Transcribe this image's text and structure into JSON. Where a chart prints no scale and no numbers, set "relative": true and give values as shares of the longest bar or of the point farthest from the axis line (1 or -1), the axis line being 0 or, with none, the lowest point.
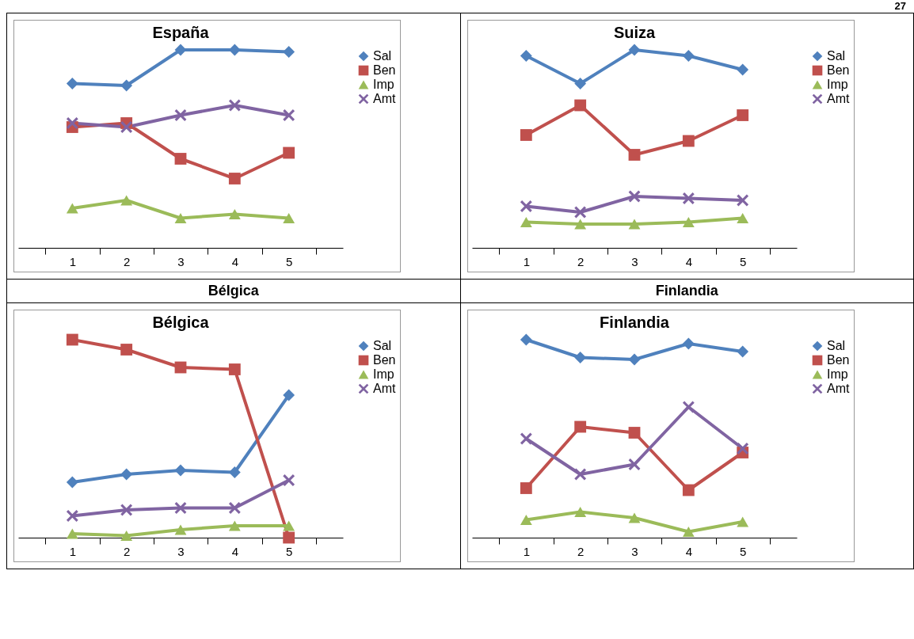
{
  "chart_data": [
    {
      "type": "line",
      "title": "España",
      "relative": true,
      "legend": "right",
      "annotations": [
        "27"
      ],
      "categories": [
        "1",
        "2",
        "3",
        "4",
        "5"
      ],
      "series": [
        {
          "name": "Sal",
          "color": "#4f81bd",
          "marker": "diamond",
          "values": [
            0.83,
            0.82,
            1.0,
            1.0,
            0.99
          ]
        },
        {
          "name": "Ben",
          "color": "#c0504d",
          "marker": "square",
          "values": [
            0.61,
            0.63,
            0.45,
            0.35,
            0.48
          ]
        },
        {
          "name": "Imp",
          "color": "#9bbb59",
          "marker": "triangle",
          "values": [
            0.2,
            0.24,
            0.15,
            0.17,
            0.15
          ]
        },
        {
          "name": "Amt",
          "color": "#8064a2",
          "marker": "cross",
          "values": [
            0.63,
            0.61,
            0.67,
            0.72,
            0.67
          ]
        }
      ]
    },
    {
      "type": "line",
      "title": "Suiza",
      "relative": true,
      "legend": "right",
      "categories": [
        "1",
        "2",
        "3",
        "4",
        "5"
      ],
      "series": [
        {
          "name": "Sal",
          "color": "#4f81bd",
          "marker": "diamond",
          "values": [
            0.97,
            0.83,
            1.0,
            0.97,
            0.9
          ]
        },
        {
          "name": "Ben",
          "color": "#c0504d",
          "marker": "square",
          "values": [
            0.57,
            0.72,
            0.47,
            0.54,
            0.67
          ]
        },
        {
          "name": "Imp",
          "color": "#9bbb59",
          "marker": "triangle",
          "values": [
            0.13,
            0.12,
            0.12,
            0.13,
            0.15
          ]
        },
        {
          "name": "Amt",
          "color": "#8064a2",
          "marker": "cross",
          "values": [
            0.21,
            0.18,
            0.26,
            0.25,
            0.24
          ]
        }
      ]
    },
    {
      "type": "line",
      "title": "Bélgica",
      "relative": true,
      "legend": "right",
      "annotations": [
        "Bélgica"
      ],
      "categories": [
        "1",
        "2",
        "3",
        "4",
        "5"
      ],
      "series": [
        {
          "name": "Sal",
          "color": "#4f81bd",
          "marker": "diamond",
          "values": [
            0.28,
            0.32,
            0.34,
            0.33,
            0.72
          ]
        },
        {
          "name": "Ben",
          "color": "#c0504d",
          "marker": "square",
          "values": [
            1.0,
            0.95,
            0.86,
            0.85,
            0.0
          ]
        },
        {
          "name": "Imp",
          "color": "#9bbb59",
          "marker": "triangle",
          "values": [
            0.02,
            0.01,
            0.04,
            0.06,
            0.06
          ]
        },
        {
          "name": "Amt",
          "color": "#8064a2",
          "marker": "cross",
          "values": [
            0.11,
            0.14,
            0.15,
            0.15,
            0.29
          ]
        }
      ]
    },
    {
      "type": "line",
      "title": "Finlandia",
      "relative": true,
      "legend": "right",
      "annotations": [
        "Finlandia"
      ],
      "categories": [
        "1",
        "2",
        "3",
        "4",
        "5"
      ],
      "series": [
        {
          "name": "Sal",
          "color": "#4f81bd",
          "marker": "diamond",
          "values": [
            1.0,
            0.91,
            0.9,
            0.98,
            0.94
          ]
        },
        {
          "name": "Ben",
          "color": "#c0504d",
          "marker": "square",
          "values": [
            0.25,
            0.56,
            0.53,
            0.24,
            0.43
          ]
        },
        {
          "name": "Imp",
          "color": "#9bbb59",
          "marker": "triangle",
          "values": [
            0.09,
            0.13,
            0.1,
            0.03,
            0.08
          ]
        },
        {
          "name": "Amt",
          "color": "#8064a2",
          "marker": "cross",
          "values": [
            0.5,
            0.32,
            0.37,
            0.66,
            0.45
          ]
        }
      ]
    }
  ]
}
